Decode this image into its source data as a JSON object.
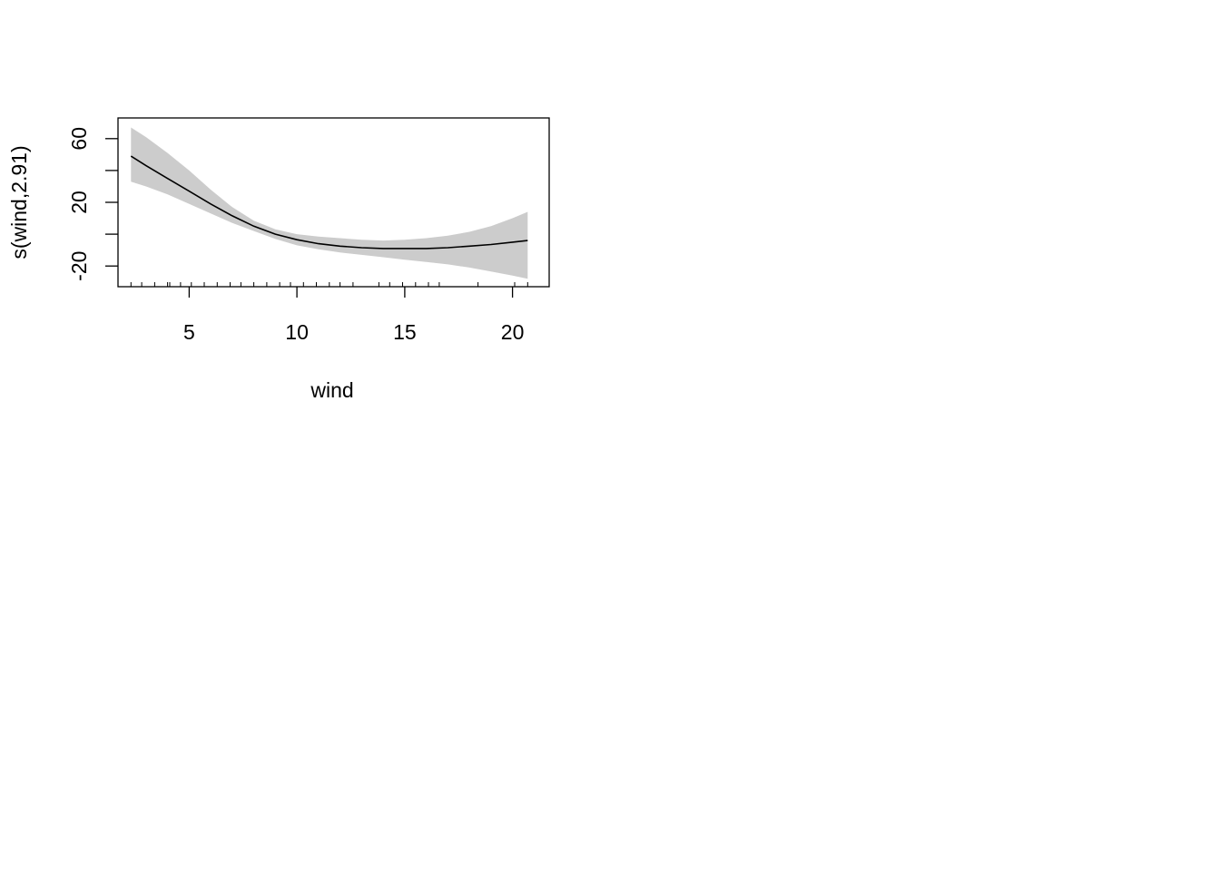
{
  "chart_data": {
    "type": "line",
    "title": "",
    "xlabel": "wind",
    "ylabel": "s(wind,2.91)",
    "xlim": [
      1.7,
      21.7
    ],
    "ylim": [
      -33,
      73
    ],
    "xticks": [
      5,
      10,
      15,
      20
    ],
    "xtick_labels": [
      "5",
      "10",
      "15",
      "20"
    ],
    "yticks": [
      -20,
      0,
      20,
      40,
      60
    ],
    "ytick_labels": [
      "-20",
      "",
      "20",
      "",
      "60"
    ],
    "grid": false,
    "legend": "none",
    "colors": {
      "line": "#000000",
      "band": "#cccccc",
      "axis": "#000000"
    },
    "series": [
      {
        "name": "fit",
        "x": [
          2.3,
          3,
          4,
          5,
          6,
          7,
          8,
          9,
          10,
          11,
          12,
          13,
          14,
          15,
          16,
          17,
          18,
          19,
          20,
          20.7
        ],
        "y": [
          49,
          43,
          35,
          27,
          19,
          11.5,
          5,
          0,
          -3.5,
          -6,
          -7.5,
          -8.5,
          -9,
          -9,
          -9,
          -8.5,
          -7.5,
          -6.5,
          -5,
          -4
        ]
      },
      {
        "name": "upper",
        "x": [
          2.3,
          3,
          4,
          5,
          6,
          7,
          8,
          9,
          10,
          11,
          12,
          13,
          14,
          15,
          16,
          17,
          18,
          19,
          20,
          20.7
        ],
        "y": [
          67,
          61,
          51,
          40,
          28,
          17,
          8.5,
          3,
          0,
          -1.5,
          -2.5,
          -3.5,
          -4,
          -3.5,
          -2.5,
          -1,
          1.5,
          5,
          10,
          14
        ]
      },
      {
        "name": "lower",
        "x": [
          2.3,
          3,
          4,
          5,
          6,
          7,
          8,
          9,
          10,
          11,
          12,
          13,
          14,
          15,
          16,
          17,
          18,
          19,
          20,
          20.7
        ],
        "y": [
          33,
          30,
          25,
          19,
          13,
          7,
          2,
          -3,
          -7,
          -9.5,
          -11.5,
          -13,
          -14.5,
          -16,
          -17.5,
          -19,
          -21,
          -23.5,
          -26,
          -28
        ]
      }
    ],
    "rug": [
      2.3,
      2.8,
      3.4,
      4.0,
      4.1,
      4.6,
      5.1,
      5.7,
      6.3,
      6.9,
      7.4,
      8.0,
      8.6,
      9.2,
      9.7,
      10.3,
      10.9,
      11.5,
      12.0,
      12.6,
      13.8,
      14.3,
      14.9,
      15.5,
      16.1,
      16.6,
      18.4,
      20.1,
      20.7
    ]
  }
}
